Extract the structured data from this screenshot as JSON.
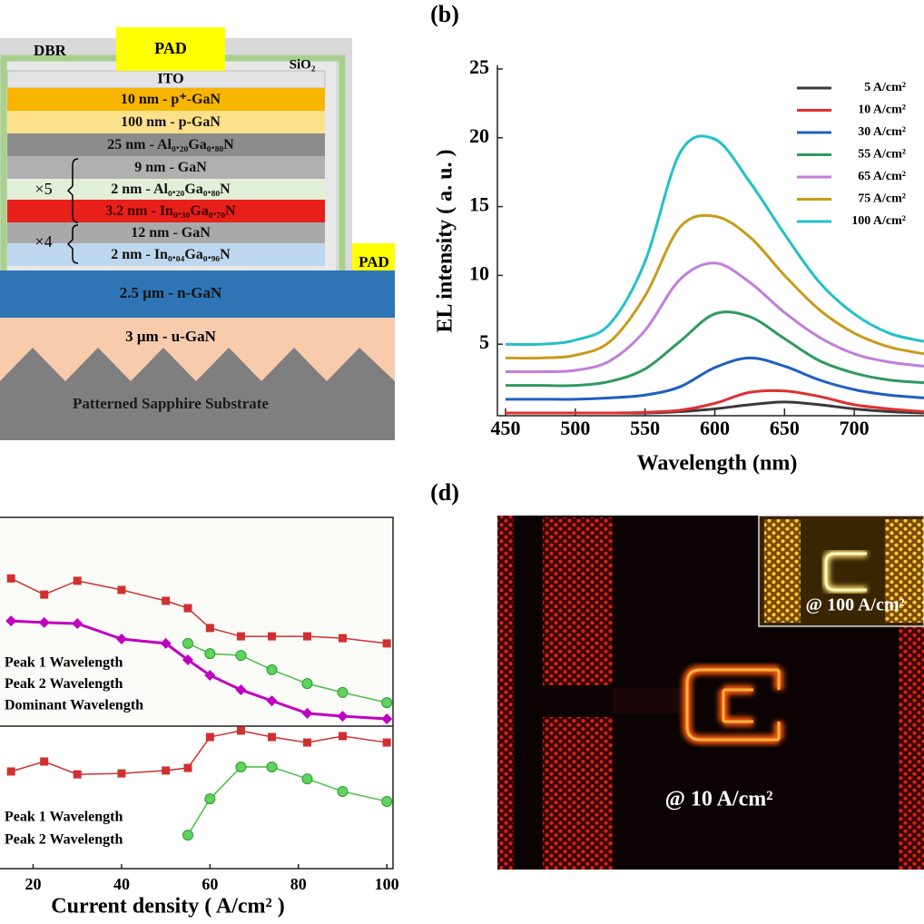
{
  "figure": {
    "panel_a": {
      "dbr": "DBR",
      "pad_top": "PAD",
      "sio2": "SiO₂",
      "ito": "ITO",
      "layers": [
        "10 nm - p⁺-GaN",
        "100 nm - p-GaN",
        "25 nm - Al₀.₂₀Ga₀.₈₀N",
        "9 nm - GaN",
        "2 nm - Al₀.₂₀Ga₀.₈₀N",
        "3.2 nm - In₀.₃₀Ga₀.₇₀N",
        "12 nm - GaN",
        "2 nm - In₀.₀₄Ga₀.₉₆N"
      ],
      "repeat_5": "×5",
      "repeat_4": "×4",
      "pad_side": "PAD",
      "n_gan": "2.5 μm - n-GaN",
      "u_gan": "3 μm - u-GaN",
      "substrate": "Patterned Sapphire Substrate"
    },
    "panel_d": {
      "label": "(d)",
      "inset_label": "@ 100 A/cm²",
      "main_label": "@ 10 A/cm²"
    }
  },
  "chart_data": [
    {
      "type": "line",
      "title": "(b)",
      "x_label": "Wavelength (nm)",
      "y_label": "EL intensity ( a. u. )",
      "smooth": true,
      "x": [
        450,
        475,
        500,
        525,
        550,
        575,
        600,
        625,
        650,
        675,
        700,
        725,
        750
      ],
      "series": [
        {
          "name": "5 A/cm²",
          "color": "#3a3a3a",
          "values": [
            0,
            0,
            0,
            0,
            0,
            0.1,
            0.3,
            0.6,
            0.8,
            0.6,
            0.3,
            0.1,
            0
          ]
        },
        {
          "name": "10 A/cm²",
          "color": "#e03030",
          "values": [
            0,
            0,
            0,
            0,
            0.05,
            0.2,
            0.7,
            1.5,
            1.6,
            1.2,
            0.6,
            0.3,
            0.1
          ]
        },
        {
          "name": "30 A/cm²",
          "color": "#1f5fbf",
          "values": [
            1,
            1,
            1,
            1.1,
            1.3,
            1.9,
            3.3,
            4.0,
            3.4,
            2.4,
            1.7,
            1.3,
            1.1
          ]
        },
        {
          "name": "55 A/cm²",
          "color": "#2e9a5e",
          "values": [
            2,
            2,
            2,
            2.3,
            3.2,
            5.2,
            7.2,
            7.0,
            5.4,
            3.8,
            2.9,
            2.4,
            2.2
          ]
        },
        {
          "name": "65 A/cm²",
          "color": "#c27ddb",
          "values": [
            3,
            3,
            3.1,
            3.8,
            6,
            9.7,
            10.9,
            9.5,
            7.3,
            5.5,
            4.3,
            3.7,
            3.4
          ]
        },
        {
          "name": "75 A/cm²",
          "color": "#c99a1a",
          "values": [
            4,
            4,
            4.2,
            5.2,
            8.5,
            13.5,
            14.3,
            12.8,
            10,
            7.5,
            5.8,
            4.8,
            4.3
          ]
        },
        {
          "name": "100 A/cm²",
          "color": "#22c1c8",
          "values": [
            5,
            5,
            5.3,
            6.5,
            11,
            18.9,
            19.9,
            16.8,
            13,
            9.5,
            7.2,
            5.8,
            5.2
          ]
        }
      ],
      "xlim": [
        450,
        750
      ],
      "ylim": [
        0,
        25
      ],
      "xticks": [
        450,
        500,
        550,
        600,
        650,
        700
      ],
      "yticks": [
        5,
        10,
        15,
        20,
        25
      ],
      "legend": "upper right"
    },
    {
      "type": "line",
      "x": [
        15,
        22.5,
        30,
        40,
        50,
        55,
        60,
        67,
        74,
        82,
        90,
        100
      ],
      "series": [
        {
          "name": "Peak 1 Wavelength",
          "color": "#d03030",
          "marker": "square",
          "values": [
            616.6,
            610.4,
            615.7,
            612.2,
            608,
            605.2,
            597.6,
            594.4,
            594.4,
            594.4,
            593.7,
            591.7
          ]
        },
        {
          "name": "Peak 2 Wavelength",
          "color": "#44c044",
          "marker": "circle",
          "values": [
            null,
            null,
            null,
            null,
            null,
            591.7,
            587.8,
            587.1,
            581.6,
            576.3,
            572.9,
            569.0
          ]
        },
        {
          "name": "Dominant Wavelength",
          "color": "#c000c0",
          "marker": "diamond",
          "values": [
            600.3,
            599.7,
            599.3,
            593.4,
            591.7,
            585.4,
            579.5,
            573.9,
            569.7,
            564.9,
            563.8,
            562.8
          ]
        }
      ],
      "xlim": [
        12.5,
        101.4
      ],
      "ylim": [
        560,
        640
      ],
      "legend": "lower left"
    },
    {
      "type": "line",
      "x_label": "Current density ( A/cm² )",
      "x": [
        15,
        22.5,
        30,
        40,
        50,
        55,
        60,
        67,
        74,
        82,
        90,
        100
      ],
      "series": [
        {
          "name": "Peak 1 Wavelength",
          "color": "#d03030",
          "marker": "square",
          "values": [
            40.9,
            45.1,
            39.7,
            40.1,
            41.3,
            42.4,
            55.4,
            58.1,
            55.4,
            53.1,
            55.8,
            53.1
          ]
        },
        {
          "name": "Peak 2 Wavelength",
          "color": "#44c044",
          "marker": "circle",
          "values": [
            null,
            null,
            null,
            null,
            null,
            14.1,
            29.4,
            42.8,
            42.8,
            37.8,
            32.5,
            28.3
          ]
        }
      ],
      "xlim": [
        12.5,
        101.4
      ],
      "ylim": [
        0,
        60
      ],
      "xticks": [
        20,
        40,
        60,
        80,
        100
      ],
      "legend": "lower left"
    }
  ]
}
